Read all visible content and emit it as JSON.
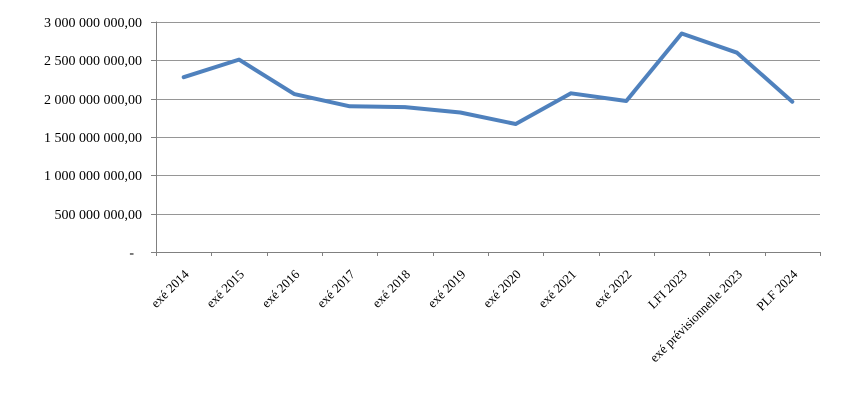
{
  "chart_data": {
    "type": "line",
    "title": "",
    "xlabel": "",
    "ylabel": "",
    "categories": [
      "exé 2014",
      "exé 2015",
      "exé 2016",
      "exé 2017",
      "exé 2018",
      "exé 2019",
      "exé 2020",
      "exé 2021",
      "exé 2022",
      "LFI 2023",
      "exé prévisionnelle 2023",
      "PLF 2024"
    ],
    "series": [
      {
        "name": "",
        "values": [
          2280000000,
          2510000000,
          2060000000,
          1900000000,
          1890000000,
          1820000000,
          1670000000,
          2070000000,
          1970000000,
          2850000000,
          2600000000,
          1960000000
        ]
      }
    ],
    "ylim": [
      0,
      3000000000
    ],
    "y_step": 500000000,
    "y_tick_labels": [
      "-",
      "500 000 000,00",
      "1 000 000 000,00",
      "1 500 000 000,00",
      "2 000 000 000,00",
      "2 500 000 000,00",
      "3 000 000 000,00"
    ],
    "grid": true,
    "legend": false,
    "x_labels_rotation_deg": 45,
    "colors": {
      "line": "#4F81BD",
      "gridline": "#969696",
      "axis": "#808080",
      "text": "#000000",
      "background": "#FFFFFF"
    }
  }
}
